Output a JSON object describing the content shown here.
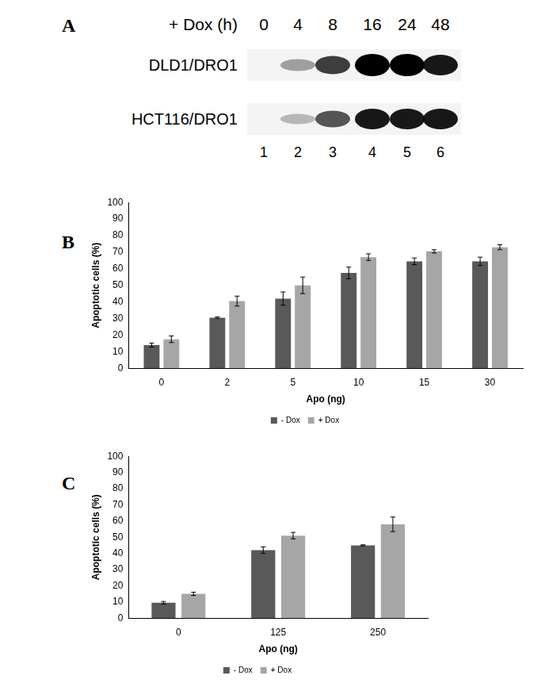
{
  "blot": {
    "panel": "A",
    "header": "+ Dox (h)",
    "timepoints": [
      0,
      4,
      8,
      16,
      24,
      48
    ],
    "lanes": [
      1,
      2,
      3,
      4,
      5,
      6
    ],
    "rows": [
      {
        "label": "DLD1/DRO1",
        "intensity": [
          0,
          0.35,
          0.75,
          1,
          1,
          0.9
        ]
      },
      {
        "label": "HCT116/DRO1",
        "intensity": [
          0,
          0.25,
          0.65,
          0.9,
          0.9,
          0.9
        ]
      }
    ]
  },
  "chart_data": [
    {
      "panel": "B",
      "type": "bar",
      "categories": [
        0,
        2,
        5,
        10,
        15,
        30
      ],
      "x_label": "Apo (ng)",
      "y_label": "Apoptotic cells (%)",
      "ylim": [
        0,
        100
      ],
      "yticks": [
        0,
        10,
        20,
        30,
        40,
        50,
        60,
        70,
        80,
        90,
        100
      ],
      "grid": false,
      "legend": "bottom",
      "series": [
        {
          "name": "- Dox",
          "color": "#595959",
          "values": [
            14,
            30.5,
            42,
            57.5,
            64.5,
            64.5
          ],
          "errors": [
            1.2,
            0.5,
            4,
            3.5,
            2,
            2.5
          ]
        },
        {
          "name": "+ Dox",
          "color": "#a6a6a6",
          "values": [
            17.5,
            40.5,
            50,
            67,
            70.5,
            73
          ],
          "errors": [
            2,
            3,
            5,
            2,
            1,
            1.5
          ]
        }
      ]
    },
    {
      "panel": "C",
      "type": "bar",
      "categories": [
        0,
        125,
        250
      ],
      "x_label": "Apo (ng)",
      "y_label": "Apoptotic cells (%)",
      "ylim": [
        0,
        100
      ],
      "yticks": [
        0,
        10,
        20,
        30,
        40,
        50,
        60,
        70,
        80,
        90,
        100
      ],
      "grid": false,
      "legend": "bottom",
      "series": [
        {
          "name": "- Dox",
          "color": "#595959",
          "values": [
            9.5,
            42,
            45
          ],
          "errors": [
            0.8,
            2,
            0.3
          ]
        },
        {
          "name": "+ Dox",
          "color": "#a6a6a6",
          "values": [
            15,
            51,
            58
          ],
          "errors": [
            1,
            2,
            4.5
          ]
        }
      ]
    }
  ]
}
